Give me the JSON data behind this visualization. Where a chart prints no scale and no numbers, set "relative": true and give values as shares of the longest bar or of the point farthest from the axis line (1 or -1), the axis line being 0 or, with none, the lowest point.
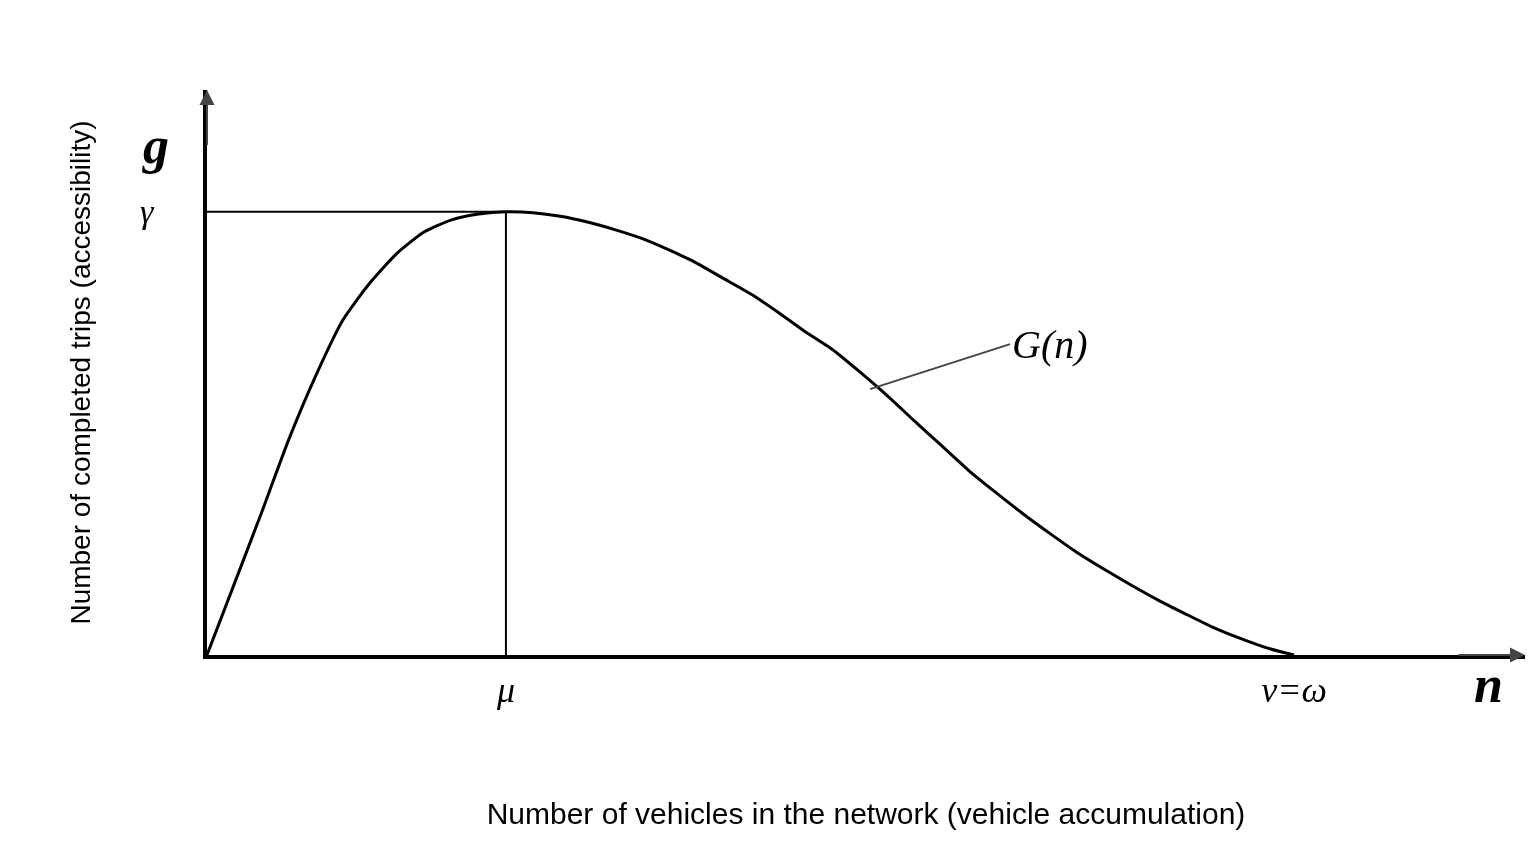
{
  "chart_data": {
    "type": "line",
    "relative": true,
    "xlabel": "Number of vehicles in the network (vehicle accumulation)",
    "ylabel": "Number of completed trips (accessibility)",
    "categories": [
      null,
      null,
      null,
      null,
      null,
      null,
      null,
      null,
      null,
      null,
      null,
      "μ",
      null,
      null,
      null,
      null,
      null,
      null,
      null,
      null,
      null,
      null,
      null,
      null,
      null,
      null,
      null,
      null,
      null,
      null,
      null,
      null,
      null,
      null,
      null,
      null,
      null,
      null,
      null,
      null,
      "ν=ω",
      null,
      null,
      null,
      null,
      null,
      null,
      null,
      null
    ],
    "series": [
      {
        "color": "#000000",
        "values": [
          0,
          0.16,
          0.32,
          0.485,
          0.63,
          0.756,
          0.84,
          0.907,
          0.955,
          0.982,
          0.995,
          1,
          0.998,
          0.99,
          0.977,
          0.96,
          0.94,
          0.914,
          0.885,
          0.85,
          0.815,
          0.774,
          0.73,
          0.69,
          0.64,
          0.587,
          0.53,
          0.474,
          0.418,
          0.368,
          0.32,
          0.275,
          0.232,
          0.194,
          0.158,
          0.124,
          0.093,
          0.063,
          0.038,
          0.016,
          0,
          null,
          null,
          null,
          null,
          null,
          null,
          null,
          null
        ]
      }
    ],
    "ref_lines": [
      {
        "axis": "y",
        "value": 1,
        "label": "γ"
      },
      {
        "axis": "x",
        "value": "μ"
      }
    ],
    "annotations": [
      "g",
      "n",
      {
        "text": "G(n)"
      }
    ],
    "grid": false,
    "marker": "none",
    "line_style": "solid"
  }
}
